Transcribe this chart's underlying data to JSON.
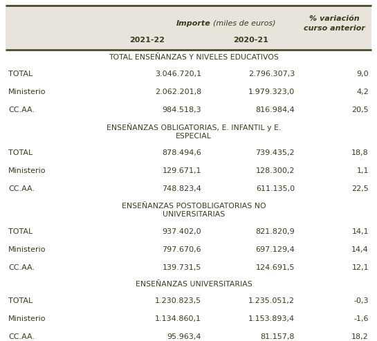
{
  "header_bg": "#e8e4dc",
  "body_bg": "#ffffff",
  "text_color": "#3a3a1e",
  "border_color": "#4a4a2a",
  "sections": [
    {
      "section_title": "TOTAL ENSEÑANZAS Y NIVELES EDUCATIVOS",
      "section_lines": 1,
      "rows": [
        [
          "TOTAL",
          "3.046.720,1",
          "2.796.307,3",
          "9,0"
        ],
        [
          "Ministerio",
          "2.062.201,8",
          "1.979.323,0",
          "4,2"
        ],
        [
          "CC.AA.",
          "984.518,3",
          "816.984,4",
          "20,5"
        ]
      ]
    },
    {
      "section_title": "ENSEÑANZAS OBLIGATORIAS, E. INFANTIL y E.\nESPECIAL",
      "section_lines": 2,
      "rows": [
        [
          "TOTAL",
          "878.494,6",
          "739.435,2",
          "18,8"
        ],
        [
          "Ministerio",
          "129.671,1",
          "128.300,2",
          "1,1"
        ],
        [
          "CC.AA.",
          "748.823,4",
          "611.135,0",
          "22,5"
        ]
      ]
    },
    {
      "section_title": "ENSEÑANZAS POSTOBLIGATORIAS NO\nUNIVERSITARIAS",
      "section_lines": 2,
      "rows": [
        [
          "TOTAL",
          "937.402,0",
          "821.820,9",
          "14,1"
        ],
        [
          "Ministerio",
          "797.670,6",
          "697.129,4",
          "14,4"
        ],
        [
          "CC.AA.",
          "139.731,5",
          "124.691,5",
          "12,1"
        ]
      ]
    },
    {
      "section_title": "ENSEÑANZAS UNIVERSITARIAS",
      "section_lines": 1,
      "rows": [
        [
          "TOTAL",
          "1.230.823,5",
          "1.235.051,2",
          "-0,3"
        ],
        [
          "Ministerio",
          "1.134.860,1",
          "1.153.893,4",
          "-1,6"
        ],
        [
          "CC.AA.",
          "95.963,4",
          "81.157,8",
          "18,2"
        ]
      ]
    }
  ],
  "figsize": [
    5.45,
    4.93
  ],
  "dpi": 100
}
